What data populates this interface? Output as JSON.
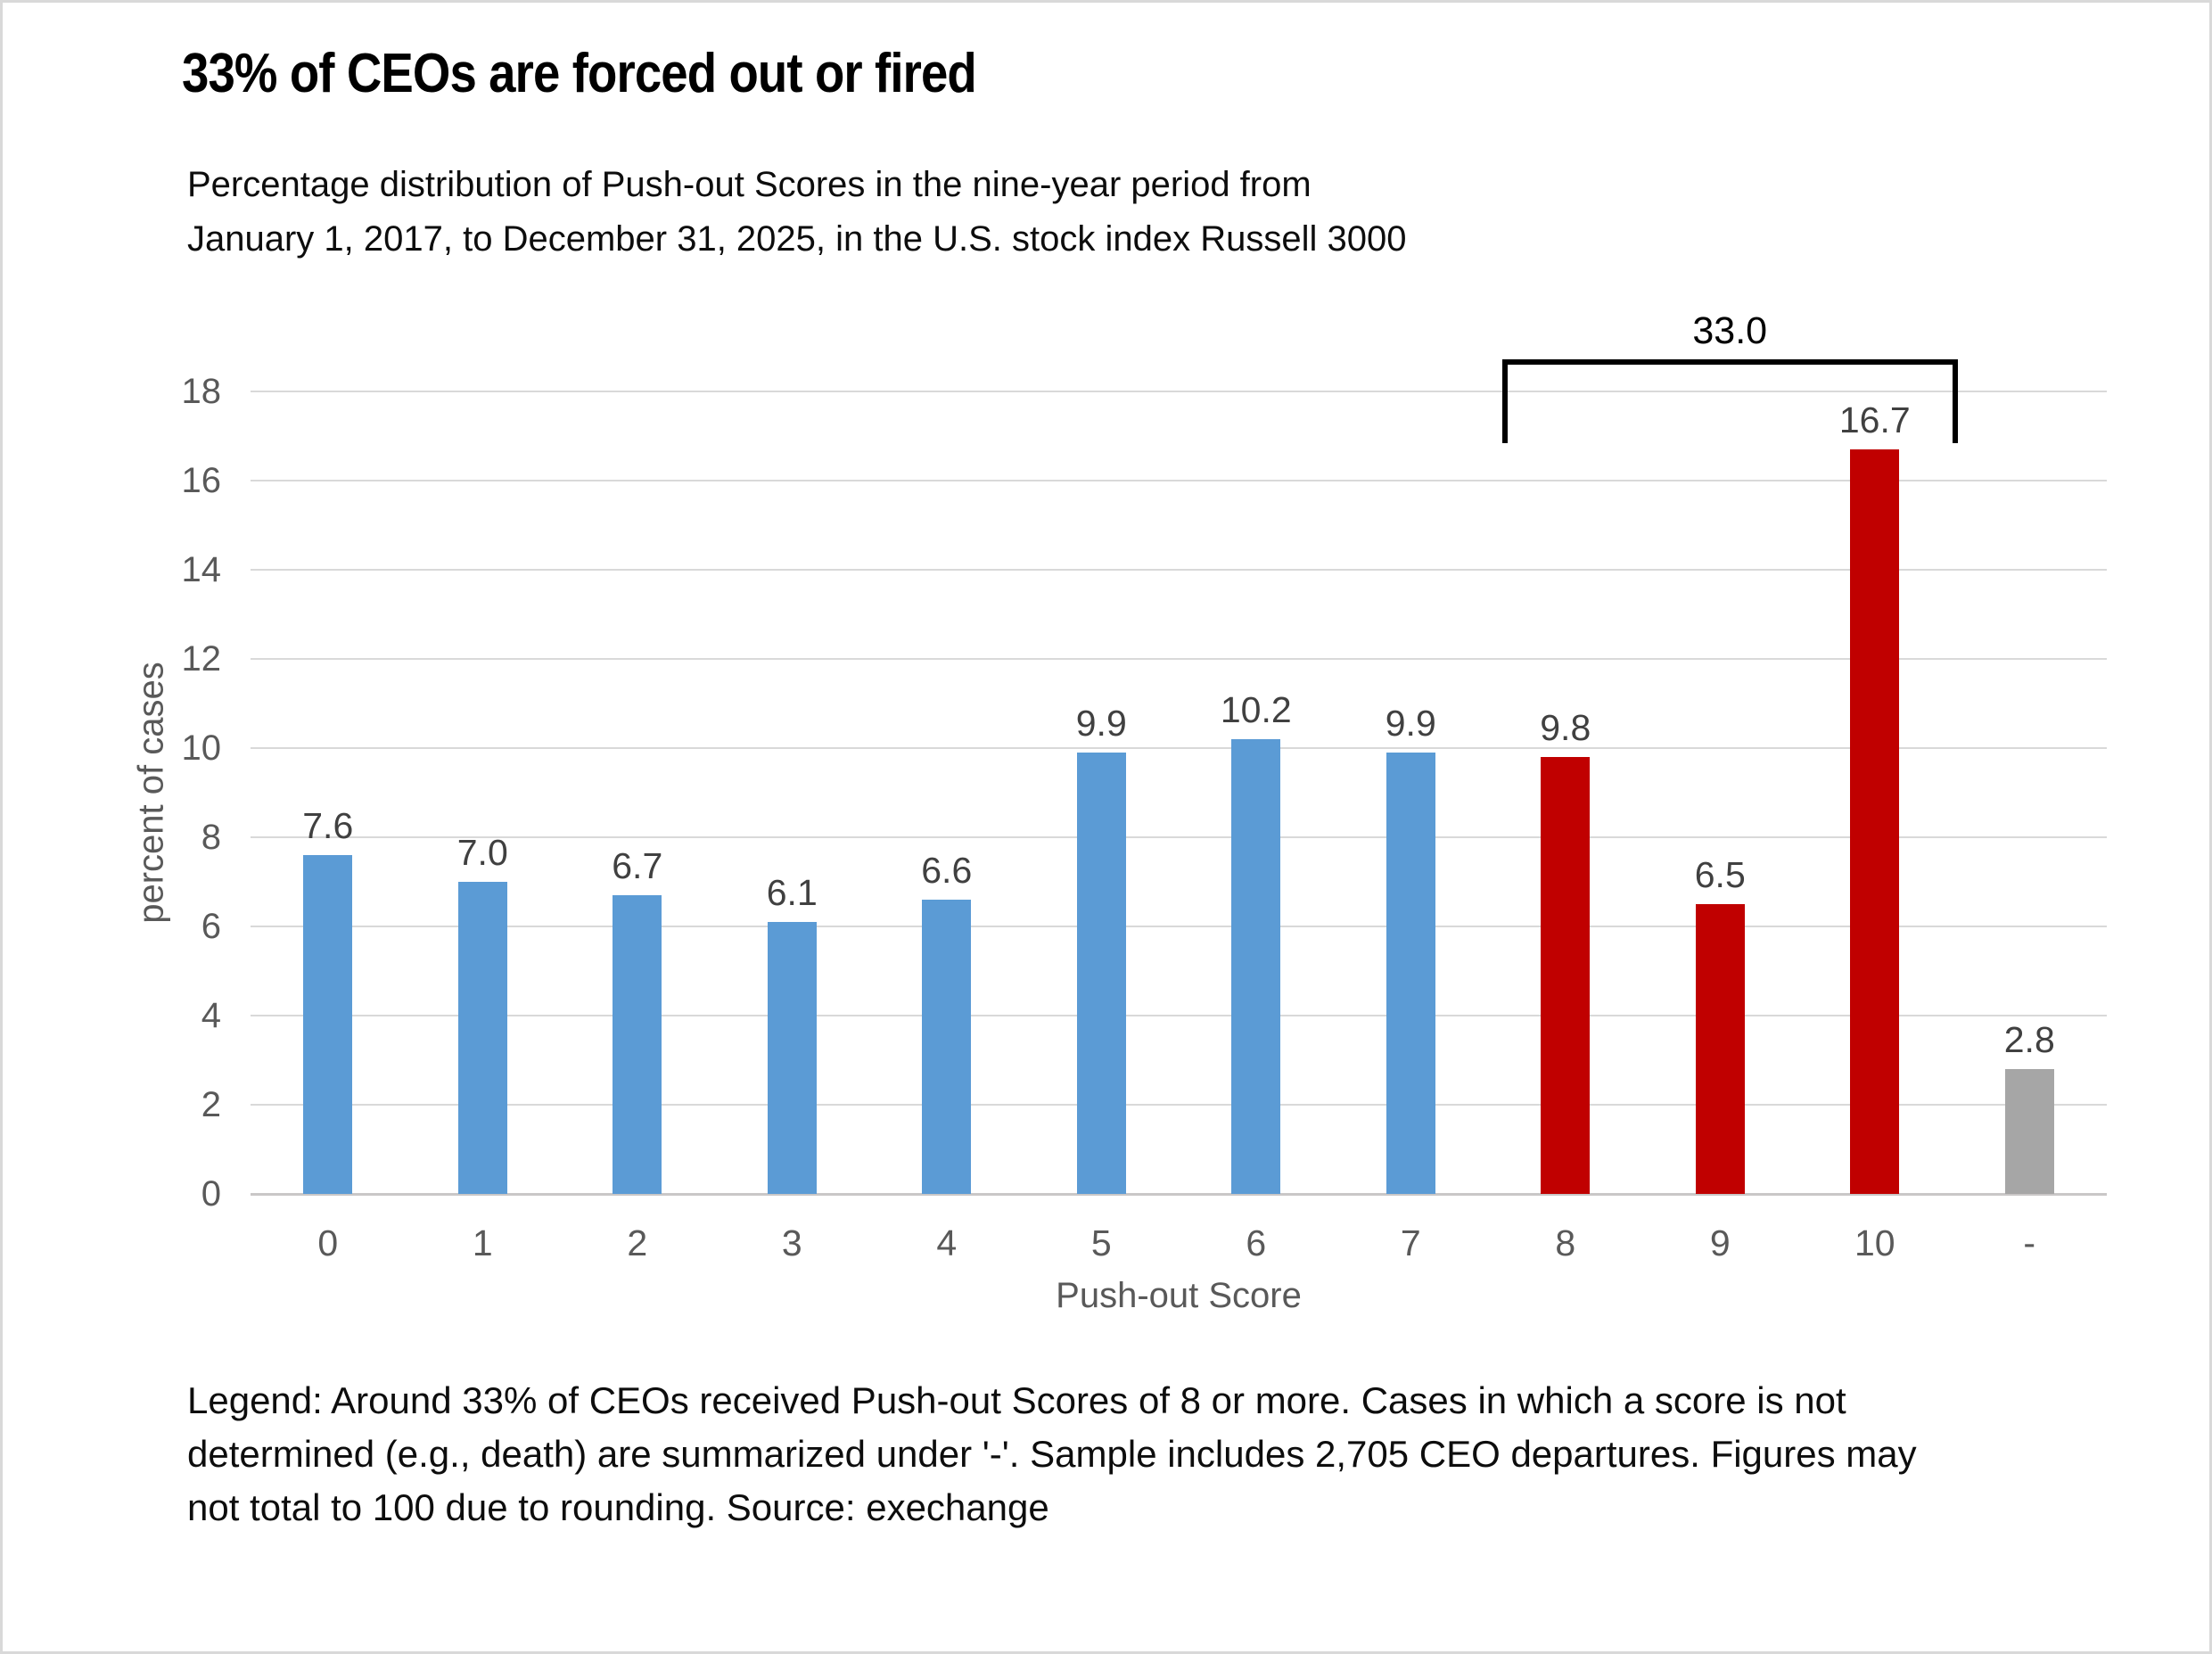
{
  "page": {
    "title": "33% of CEOs are forced out or fired",
    "subtitle_lines": [
      "Percentage distribution of Push-out Scores in the nine-year period from",
      "January 1, 2017, to December 31, 2025, in the U.S. stock index Russell 3000"
    ],
    "legend_lines": [
      "Legend: Around 33% of CEOs received Push-out Scores of 8 or more. Cases in which a score is not",
      "determined (e.g., death) are summarized under '-'. Sample includes 2,705 CEO departures. Figures may",
      "not total to 100 due to rounding. Source: exechange"
    ]
  },
  "chart_data": {
    "type": "bar",
    "categories": [
      "0",
      "1",
      "2",
      "3",
      "4",
      "5",
      "6",
      "7",
      "8",
      "9",
      "10",
      "-"
    ],
    "values": [
      7.6,
      7.0,
      6.7,
      6.1,
      6.6,
      9.9,
      10.2,
      9.9,
      9.8,
      6.5,
      16.7,
      2.8
    ],
    "color_roles": [
      "blue",
      "blue",
      "blue",
      "blue",
      "blue",
      "blue",
      "blue",
      "blue",
      "red",
      "red",
      "red",
      "gray"
    ],
    "series_colors": {
      "blue": "#5B9BD5",
      "red": "#C00000",
      "gray": "#A6A6A6"
    },
    "title": "33% of CEOs are forced out or fired",
    "xlabel": "Push-out Score",
    "ylabel": "percent of cases",
    "ylim": [
      0,
      18
    ],
    "yticks": [
      0,
      2,
      4,
      6,
      8,
      10,
      12,
      14,
      16,
      18
    ],
    "grid": true,
    "legend_position": "none",
    "annotation": {
      "label": "33.0",
      "from_category": "8",
      "to_category": "10"
    },
    "colors_meta": {
      "gridline": "#D9D9D9",
      "axis_line": "#C9C7C7",
      "tick_text": "#595959",
      "data_label_text": "#404040",
      "page_border": "#D9D9D9"
    }
  }
}
